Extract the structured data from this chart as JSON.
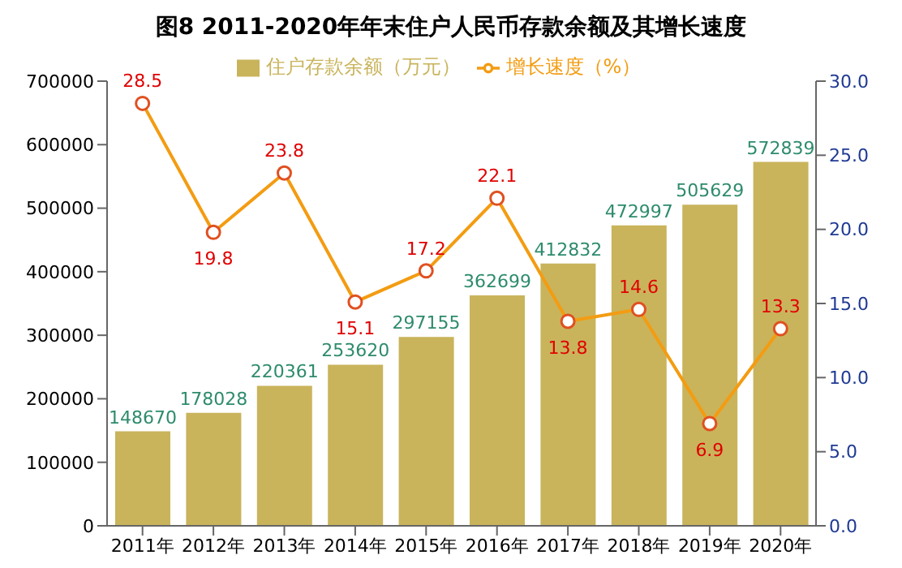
{
  "chart_data": {
    "type": "bar",
    "title": "图8  2011-2020年年末住户人民币存款余额及其增长速度",
    "categories": [
      "2011年",
      "2012年",
      "2013年",
      "2014年",
      "2015年",
      "2016年",
      "2017年",
      "2018年",
      "2019年",
      "2020年"
    ],
    "series": [
      {
        "name": "住户存款余额（万元）",
        "color": "#c9b45c",
        "values": [
          148670,
          178028,
          220361,
          253620,
          297155,
          362699,
          412832,
          472997,
          505629,
          572839
        ]
      },
      {
        "name": "增长速度（%）",
        "type": "line",
        "axis": "y2",
        "color": "#f39c12",
        "values": [
          28.5,
          19.8,
          23.8,
          15.1,
          17.2,
          22.1,
          13.8,
          14.6,
          6.9,
          13.3
        ]
      }
    ],
    "ylim": [
      0,
      700000
    ],
    "yticks": [
      0,
      100000,
      200000,
      300000,
      400000,
      500000,
      600000,
      700000
    ],
    "y2lim": [
      0,
      30
    ],
    "y2ticks": [
      {
        "value": 0,
        "label": "0.0"
      },
      {
        "value": 5,
        "label": "5.0"
      },
      {
        "value": 10,
        "label": "10.0"
      },
      {
        "value": 15,
        "label": "15.0"
      },
      {
        "value": 20,
        "label": "20.0"
      },
      {
        "value": 25,
        "label": "25.0"
      },
      {
        "value": 30,
        "label": "30.0"
      }
    ],
    "data_labels": true,
    "legend": "top",
    "grid": false,
    "marker": "circle",
    "line_style": "solid"
  }
}
